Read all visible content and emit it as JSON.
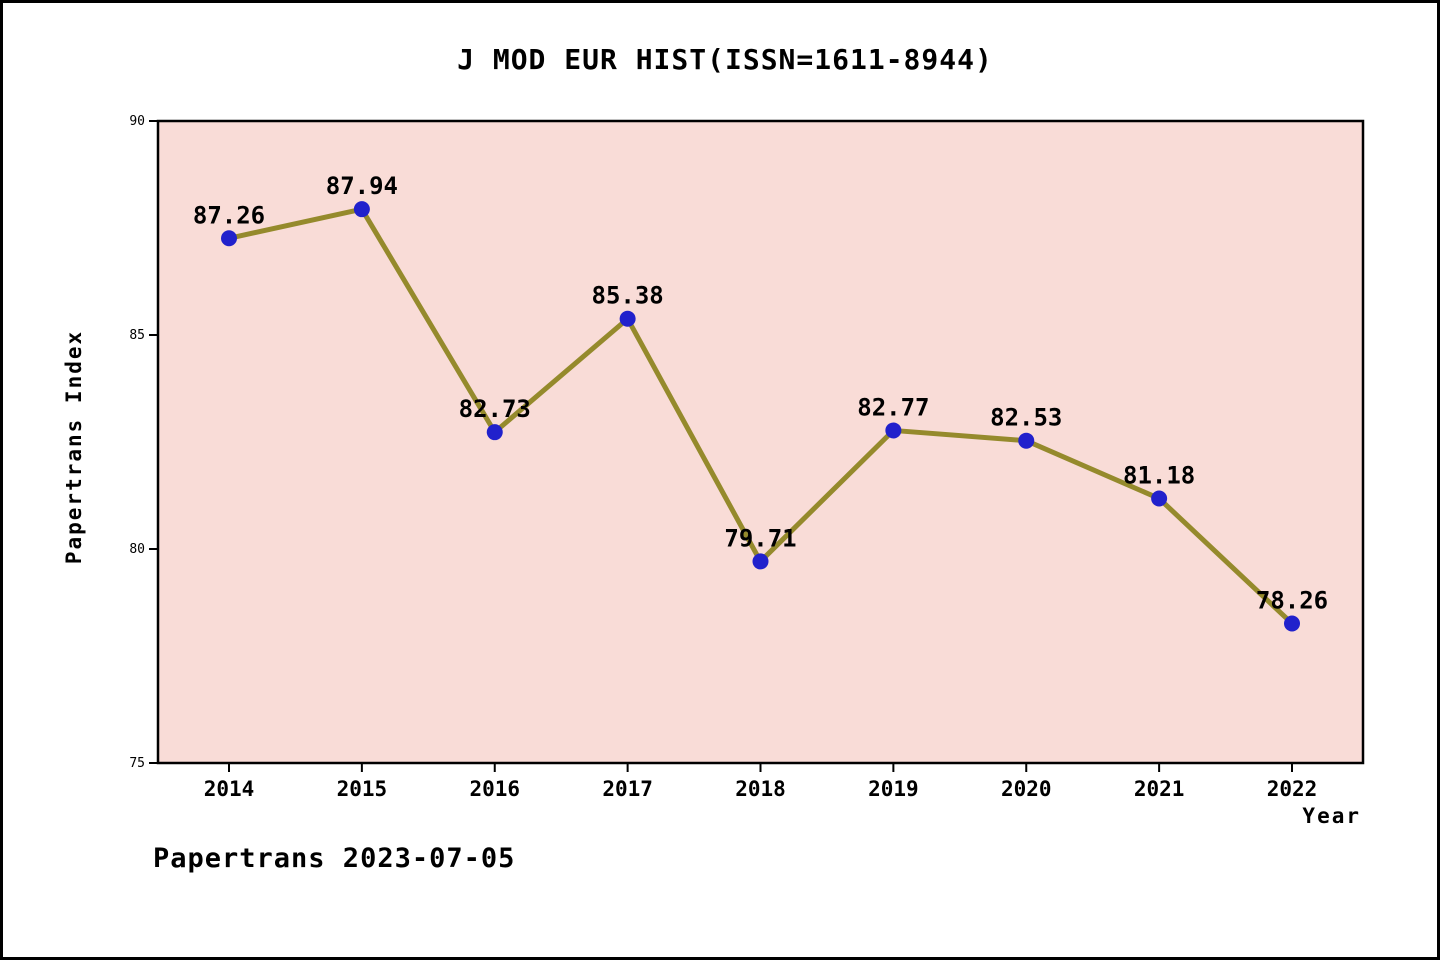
{
  "title": "J MOD EUR HIST(ISSN=1611-8944)",
  "footer": "Papertrans 2023-07-05",
  "chart_data": {
    "type": "line",
    "title": "J MOD EUR HIST(ISSN=1611-8944)",
    "xlabel": "Year",
    "ylabel": "Papertrans Index",
    "categories": [
      "2014",
      "2015",
      "2016",
      "2017",
      "2018",
      "2019",
      "2020",
      "2021",
      "2022"
    ],
    "values": [
      87.26,
      87.94,
      82.73,
      85.38,
      79.71,
      82.77,
      82.53,
      81.18,
      78.26
    ],
    "point_labels": [
      "87.26",
      "87.94",
      "82.73",
      "85.38",
      "79.71",
      "82.77",
      "82.53",
      "81.18",
      "78.26"
    ],
    "ylim": [
      75,
      90
    ],
    "yticks": [
      75,
      80,
      85,
      90
    ],
    "grid": "off",
    "legend": "none",
    "colors": {
      "plot_background": "#f9dcd7",
      "line": "#958a2c",
      "marker": "#2121cc",
      "text": "#000000",
      "axis": "#000000"
    }
  }
}
